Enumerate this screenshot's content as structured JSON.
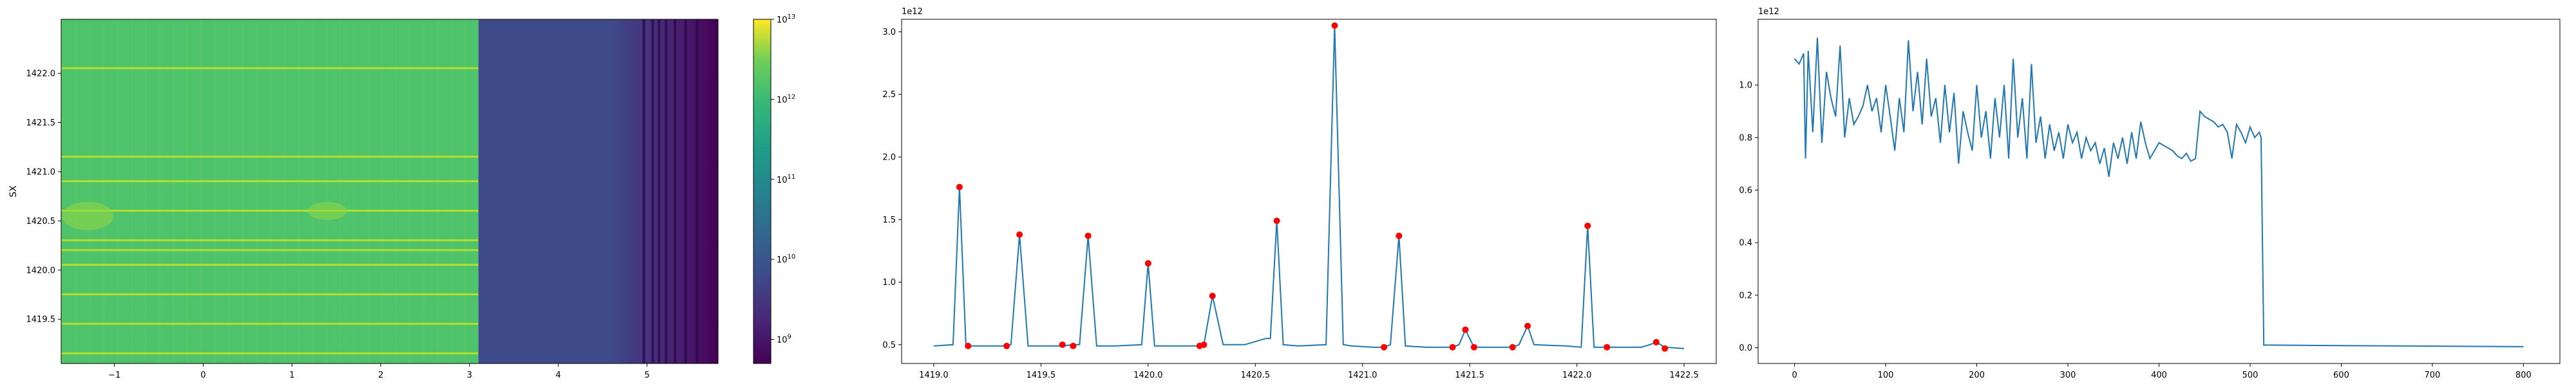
{
  "chart_data": [
    {
      "type": "heatmap",
      "title": "",
      "xlabel": "",
      "ylabel": "SX",
      "xlim": [
        -1.6,
        5.8
      ],
      "ylim": [
        1419.05,
        1422.55
      ],
      "xticks": [
        -1,
        0,
        1,
        2,
        3,
        4,
        5
      ],
      "xtick_labels": [
        "−1",
        "0",
        "1",
        "2",
        "3",
        "4",
        "5"
      ],
      "yticks": [
        1419.5,
        1420.0,
        1420.5,
        1421.0,
        1421.5,
        1422.0
      ],
      "ytick_labels": [
        "1419.5",
        "1420.0",
        "1420.5",
        "1421.0",
        "1421.5",
        "1422.0"
      ],
      "colorscale": "viridis",
      "log_color": true,
      "color_range": [
        500000000.0,
        10000000000000.0
      ],
      "colorbar_ticks": [
        {
          "value": 1000000000.0,
          "label": "10",
          "exp": "9"
        },
        {
          "value": 10000000000.0,
          "label": "10",
          "exp": "10"
        },
        {
          "value": 100000000000.0,
          "label": "10",
          "exp": "11"
        },
        {
          "value": 1000000000000.0,
          "label": "10",
          "exp": "12"
        },
        {
          "value": 10000000000000.0,
          "label": "10",
          "exp": "13"
        }
      ],
      "regions": [
        {
          "x": [
            -1.6,
            3.1
          ],
          "value": 400000000000.0
        },
        {
          "x": [
            3.1,
            4.6
          ],
          "value": 10000000000.0
        },
        {
          "x": [
            4.6,
            5.8
          ],
          "value": "gradient 1e10 to 1e9"
        }
      ],
      "bright_rows": [
        1419.15,
        1419.45,
        1419.75,
        1420.05,
        1420.2,
        1420.3,
        1420.6,
        1420.9,
        1421.15,
        1422.05
      ]
    },
    {
      "type": "line",
      "title": "",
      "xlabel": "",
      "ylabel": "",
      "scale_label": "1e12",
      "xlim": [
        1418.85,
        1422.65
      ],
      "ylim": [
        0.35,
        3.1
      ],
      "xticks": [
        1419.0,
        1419.5,
        1420.0,
        1420.5,
        1421.0,
        1421.5,
        1422.0,
        1422.5
      ],
      "xtick_labels": [
        "1419.0",
        "1419.5",
        "1420.0",
        "1420.5",
        "1421.0",
        "1421.5",
        "1422.0",
        "1422.5"
      ],
      "yticks": [
        0.5,
        1.0,
        1.5,
        2.0,
        2.5,
        3.0
      ],
      "ytick_labels": [
        "0.5",
        "1.0",
        "1.5",
        "2.0",
        "2.5",
        "3.0"
      ],
      "line_color": "#1f77b4",
      "marker_color": "#ff0000",
      "series": [
        {
          "x": [
            1419.0,
            1419.09,
            1419.12,
            1419.15,
            1419.2,
            1419.32,
            1419.36,
            1419.4,
            1419.44,
            1419.5,
            1419.6,
            1419.65,
            1419.68,
            1419.72,
            1419.76,
            1419.85,
            1419.97,
            1420.0,
            1420.03,
            1420.1,
            1420.2,
            1420.24,
            1420.26,
            1420.3,
            1420.35,
            1420.45,
            1420.55,
            1420.57,
            1420.6,
            1420.63,
            1420.7,
            1420.83,
            1420.87,
            1420.91,
            1420.95,
            1421.05,
            1421.1,
            1421.13,
            1421.17,
            1421.2,
            1421.3,
            1421.42,
            1421.45,
            1421.48,
            1421.52,
            1421.6,
            1421.7,
            1421.73,
            1421.77,
            1421.8,
            1421.95,
            1422.02,
            1422.05,
            1422.08,
            1422.13,
            1422.2,
            1422.3,
            1422.34,
            1422.37,
            1422.41,
            1422.5
          ],
          "y": [
            0.49,
            0.5,
            1.76,
            0.49,
            0.49,
            0.49,
            0.5,
            1.38,
            0.49,
            0.49,
            0.49,
            0.5,
            0.5,
            1.37,
            0.49,
            0.49,
            0.5,
            1.15,
            0.49,
            0.49,
            0.49,
            0.49,
            0.5,
            0.89,
            0.5,
            0.5,
            0.55,
            0.55,
            1.49,
            0.5,
            0.49,
            0.5,
            3.05,
            0.5,
            0.49,
            0.48,
            0.48,
            0.5,
            1.37,
            0.49,
            0.48,
            0.48,
            0.5,
            0.62,
            0.48,
            0.48,
            0.48,
            0.5,
            0.65,
            0.5,
            0.49,
            0.48,
            1.45,
            0.48,
            0.48,
            0.48,
            0.48,
            0.5,
            0.52,
            0.48,
            0.47
          ]
        }
      ],
      "markers": {
        "x": [
          1419.12,
          1419.16,
          1419.34,
          1419.4,
          1419.6,
          1419.65,
          1419.72,
          1420.0,
          1420.24,
          1420.26,
          1420.3,
          1420.6,
          1420.87,
          1421.1,
          1421.17,
          1421.42,
          1421.48,
          1421.52,
          1421.7,
          1421.77,
          1422.05,
          1422.14,
          1422.37,
          1422.41
        ],
        "y": [
          1.76,
          0.49,
          0.49,
          1.38,
          0.5,
          0.49,
          1.37,
          1.15,
          0.49,
          0.5,
          0.89,
          1.49,
          3.05,
          0.48,
          1.37,
          0.48,
          0.62,
          0.48,
          0.48,
          0.65,
          1.45,
          0.48,
          0.52,
          0.47
        ]
      }
    },
    {
      "type": "line",
      "title": "",
      "xlabel": "",
      "ylabel": "",
      "scale_label": "1e12",
      "xlim": [
        -40,
        840
      ],
      "ylim": [
        -0.06,
        1.25
      ],
      "xticks": [
        0,
        100,
        200,
        300,
        400,
        500,
        600,
        700,
        800
      ],
      "xtick_labels": [
        "0",
        "100",
        "200",
        "300",
        "400",
        "500",
        "600",
        "700",
        "800"
      ],
      "yticks": [
        0.0,
        0.2,
        0.4,
        0.6,
        0.8,
        1.0
      ],
      "ytick_labels": [
        "0.0",
        "0.2",
        "0.4",
        "0.6",
        "0.8",
        "1.0"
      ],
      "line_color": "#1f77b4",
      "series": [
        {
          "x": [
            0,
            5,
            10,
            12,
            15,
            20,
            25,
            30,
            35,
            40,
            45,
            50,
            55,
            60,
            65,
            70,
            75,
            80,
            85,
            90,
            95,
            100,
            105,
            110,
            115,
            120,
            125,
            130,
            135,
            140,
            145,
            150,
            155,
            160,
            165,
            170,
            175,
            180,
            185,
            190,
            195,
            200,
            205,
            210,
            215,
            220,
            225,
            230,
            235,
            240,
            245,
            250,
            255,
            260,
            265,
            270,
            275,
            280,
            285,
            290,
            295,
            300,
            305,
            310,
            315,
            320,
            325,
            330,
            335,
            340,
            345,
            350,
            355,
            360,
            365,
            370,
            375,
            380,
            385,
            390,
            395,
            400,
            405,
            410,
            415,
            420,
            425,
            430,
            435,
            440,
            445,
            450,
            455,
            460,
            465,
            470,
            475,
            480,
            485,
            490,
            495,
            500,
            505,
            510,
            512,
            515,
            520,
            600,
            700,
            800
          ],
          "y": [
            1.1,
            1.08,
            1.12,
            0.72,
            1.13,
            0.82,
            1.18,
            0.78,
            1.05,
            0.95,
            0.88,
            1.15,
            0.8,
            0.95,
            0.85,
            0.88,
            0.92,
            1.0,
            0.9,
            0.95,
            0.82,
            1.0,
            0.88,
            0.75,
            0.95,
            0.82,
            1.17,
            0.9,
            1.05,
            0.85,
            1.1,
            0.88,
            0.95,
            0.78,
            1.0,
            0.82,
            0.97,
            0.7,
            0.9,
            0.82,
            0.75,
            1.0,
            0.8,
            0.9,
            0.72,
            0.95,
            0.8,
            1.0,
            0.72,
            1.1,
            0.8,
            0.95,
            0.72,
            1.08,
            0.78,
            0.88,
            0.72,
            0.85,
            0.75,
            0.82,
            0.72,
            0.85,
            0.78,
            0.82,
            0.72,
            0.8,
            0.75,
            0.78,
            0.7,
            0.76,
            0.65,
            0.78,
            0.72,
            0.8,
            0.7,
            0.82,
            0.72,
            0.86,
            0.78,
            0.72,
            0.75,
            0.78,
            0.77,
            0.76,
            0.75,
            0.73,
            0.72,
            0.74,
            0.71,
            0.72,
            0.9,
            0.88,
            0.87,
            0.86,
            0.84,
            0.85,
            0.82,
            0.72,
            0.85,
            0.82,
            0.78,
            0.84,
            0.8,
            0.82,
            0.8,
            0.01,
            0.01,
            0.008,
            0.006,
            0.004
          ]
        }
      ]
    }
  ]
}
